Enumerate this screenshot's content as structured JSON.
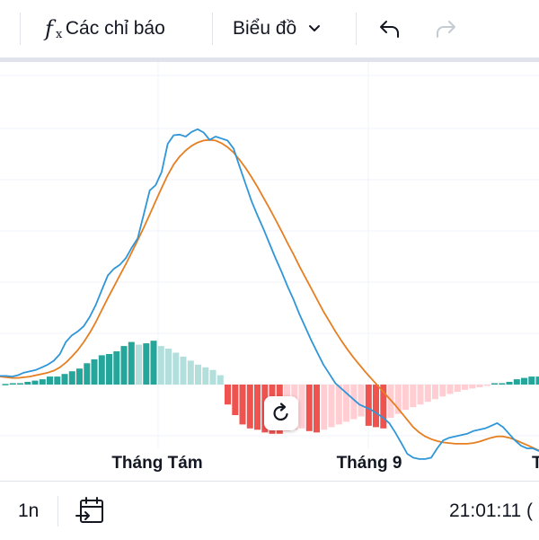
{
  "toolbar": {
    "indicators_label": "Các chỉ báo",
    "chart_label": "Biểu đồ"
  },
  "icons": {
    "indicators": "fx-icon",
    "chart_dropdown": "chevron-down-icon",
    "undo": "undo-icon",
    "redo": "redo-icon",
    "reset": "reset-icon",
    "goto_date": "calendar-goto-icon"
  },
  "colors": {
    "macd_line": "#2f96d8",
    "signal_line": "#e67e22",
    "hist_up_strong": "#26a69a",
    "hist_up_weak": "#b2dfdb",
    "hist_down_strong": "#ef5350",
    "hist_down_weak": "#ffcdd2"
  },
  "chart_data": {
    "type": "line",
    "x_tick_labels": [
      "Tháng Tám",
      "Tháng 9",
      "T"
    ],
    "grid": true,
    "series": [
      {
        "name": "",
        "values": [
          1.3,
          1.3,
          1.2,
          1.4,
          1.8,
          2.0,
          2.2,
          2.6,
          3.0,
          3.6,
          4.6,
          6.4,
          7.4,
          8.0,
          8.8,
          10.2,
          12.0,
          14.2,
          16.4,
          17.4,
          18.0,
          19.0,
          20.6,
          22.0,
          25.6,
          29.2,
          30.0,
          32.0,
          36.2,
          37.5,
          37.6,
          37.3,
          38.0,
          38.4,
          37.9,
          36.8,
          37.3,
          37.0,
          36.7,
          35.5,
          32.8,
          30.2,
          27.6,
          25.4,
          23.4,
          21.2,
          19.0,
          17.0,
          14.8,
          12.8,
          10.6,
          8.6,
          6.6,
          4.8,
          3.0,
          1.6,
          0.2,
          -0.6,
          -1.4,
          -2.2,
          -3.0,
          -3.4,
          -3.8,
          -4.4,
          -5.0,
          -5.8,
          -7.2,
          -8.8,
          -10.4,
          -11.0,
          -11.2,
          -11.2,
          -11.0,
          -9.6,
          -8.4,
          -8.0,
          -7.8,
          -7.6,
          -7.4,
          -7.0,
          -6.8,
          -6.6,
          -6.2,
          -5.8,
          -6.4,
          -7.4,
          -8.4,
          -9.2,
          -9.6,
          -9.6,
          -10.0
        ]
      },
      {
        "name": "",
        "values": [
          1.2,
          1.1,
          1.0,
          1.0,
          1.1,
          1.2,
          1.4,
          1.6,
          1.8,
          2.1,
          2.6,
          3.3,
          4.2,
          5.2,
          6.4,
          7.8,
          9.4,
          11.2,
          13.0,
          14.7,
          16.4,
          18.1,
          19.9,
          21.7,
          23.6,
          25.6,
          27.6,
          29.6,
          31.5,
          33.1,
          34.3,
          35.2,
          35.9,
          36.4,
          36.7,
          36.8,
          36.7,
          36.3,
          35.7,
          34.9,
          33.8,
          32.6,
          31.2,
          29.7,
          28.1,
          26.5,
          24.8,
          23.1,
          21.3,
          19.6,
          17.8,
          16.1,
          14.4,
          12.7,
          11.0,
          9.5,
          8.0,
          6.6,
          5.3,
          4.1,
          3.0,
          1.9,
          0.9,
          -0.1,
          -1.1,
          -2.1,
          -3.1,
          -4.2,
          -5.3,
          -6.4,
          -7.2,
          -7.8,
          -8.2,
          -8.5,
          -8.7,
          -8.8,
          -8.9,
          -8.9,
          -8.9,
          -8.8,
          -8.6,
          -8.3,
          -8.0,
          -7.8,
          -7.8,
          -8.0,
          -8.3,
          -8.7,
          -9.1,
          -9.5,
          -9.9
        ]
      }
    ],
    "histogram": [
      0.1,
      0.2,
      0.2,
      0.4,
      0.6,
      0.8,
      1.2,
      1.2,
      1.6,
      2.0,
      2.4,
      3.2,
      3.8,
      4.4,
      4.6,
      5.0,
      5.8,
      6.4,
      6.0,
      6.2,
      6.6,
      5.8,
      5.4,
      4.8,
      4.2,
      3.6,
      3.0,
      2.6,
      2.2,
      1.4,
      -3.0,
      -4.6,
      -6.0,
      -6.6,
      -6.8,
      -7.2,
      -7.4,
      -7.4,
      -7.0,
      -6.8,
      -6.6,
      -7.0,
      -7.2,
      -6.8,
      -6.4,
      -6.0,
      -5.6,
      -5.2,
      -4.8,
      -6.2,
      -6.4,
      -6.6,
      -5.0,
      -4.4,
      -3.8,
      -3.4,
      -3.0,
      -2.6,
      -2.2,
      -1.8,
      -1.4,
      -1.1,
      -0.8,
      -0.6,
      -0.4,
      -0.2,
      0.2,
      0.2,
      0.4,
      0.8,
      1.0,
      1.2,
      1.2
    ],
    "bottom": {
      "resolution": "1n",
      "time": "21:01:11 ("
    }
  }
}
